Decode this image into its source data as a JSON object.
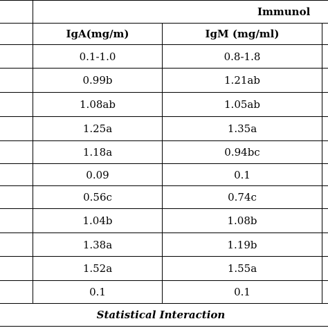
{
  "table": {
    "group_header": "Immunol",
    "columns": [
      {
        "label": "IgA(mg/m)"
      },
      {
        "label": "IgM (mg/ml)"
      }
    ],
    "rows": [
      [
        "0.1-1.0",
        "0.8-1.8"
      ],
      [
        "0.99b",
        "1.21ab"
      ],
      [
        "1.08ab",
        "1.05ab"
      ],
      [
        "1.25a",
        "1.35a"
      ],
      [
        "1.18a",
        "0.94bc"
      ],
      [
        "0.09",
        "0.1"
      ],
      [
        "0.56c",
        "0.74c"
      ],
      [
        "1.04b",
        "1.08b"
      ],
      [
        "1.38a",
        "1.19b"
      ],
      [
        "1.52a",
        "1.55a"
      ],
      [
        "0.1",
        "0.1"
      ]
    ],
    "footer_label": "Statistical Interaction"
  }
}
